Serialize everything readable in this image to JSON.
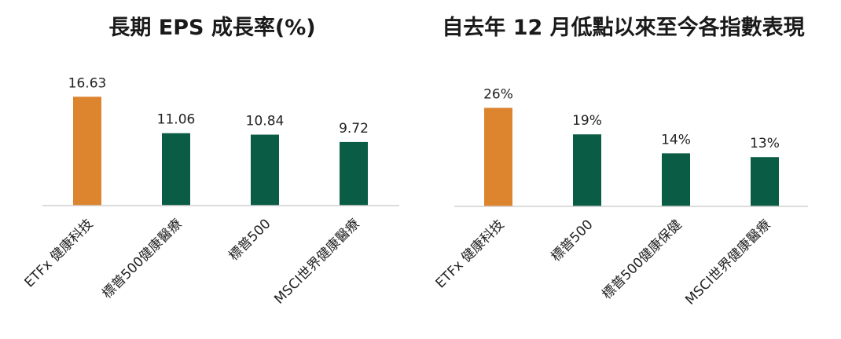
{
  "colors": {
    "highlight": "#DD842F",
    "standard": "#0A5C45",
    "axis": "#D0D0D0",
    "text": "#222222"
  },
  "chart_data": [
    {
      "type": "bar",
      "title": "長期 EPS 成長率(%)",
      "xlabel": "",
      "ylabel": "",
      "grid": false,
      "ylim": [
        0,
        17.5
      ],
      "categories": [
        "ETFx 健康科技",
        "標普500健康醫療",
        "標普500",
        "MSCI世界健康醫療"
      ],
      "values": [
        16.63,
        11.06,
        10.84,
        9.72
      ],
      "data_labels": [
        "16.63",
        "11.06",
        "10.84",
        "9.72"
      ],
      "highlight_index": 0
    },
    {
      "type": "bar",
      "title": "自去年 12 月低點以來至今各指數表現",
      "xlabel": "",
      "ylabel": "",
      "grid": false,
      "ylim": [
        0,
        26.5
      ],
      "categories": [
        "ETFx 健康科技",
        "標普500",
        "標普500健康保健",
        "MSCI世界健康醫療"
      ],
      "values": [
        26,
        19,
        14,
        13
      ],
      "data_labels": [
        "26%",
        "19%",
        "14%",
        "13%"
      ],
      "highlight_index": 0
    }
  ]
}
